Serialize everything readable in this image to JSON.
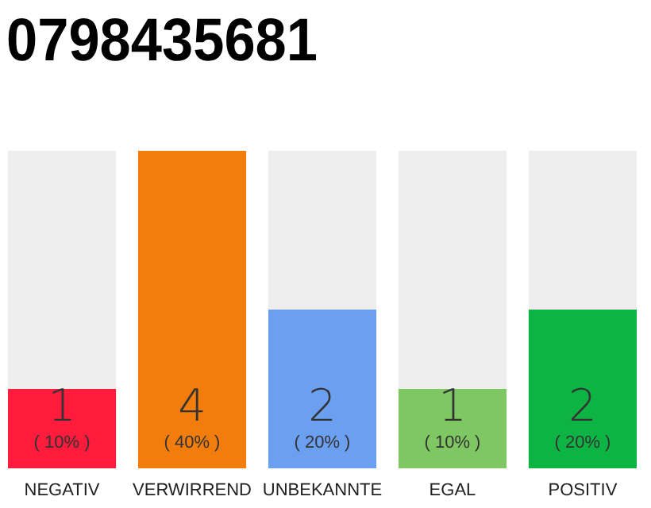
{
  "chart_data": {
    "type": "bar",
    "title": "0798435681",
    "categories": [
      "NEGATIV",
      "VERWIRREND",
      "UNBEKANNTE",
      "EGAL",
      "POSITIV"
    ],
    "values": [
      1,
      4,
      2,
      1,
      2
    ],
    "colors": [
      "#fe1b3b",
      "#f27d0c",
      "#6aa0ef",
      "#7ec763",
      "#0db443"
    ],
    "ylim": [
      0,
      4
    ],
    "data_labels": true,
    "tick_labels": "x",
    "annotations": [
      "( 10% )",
      "( 40% )",
      "( 20% )",
      "( 10% )",
      "( 20% )"
    ]
  }
}
